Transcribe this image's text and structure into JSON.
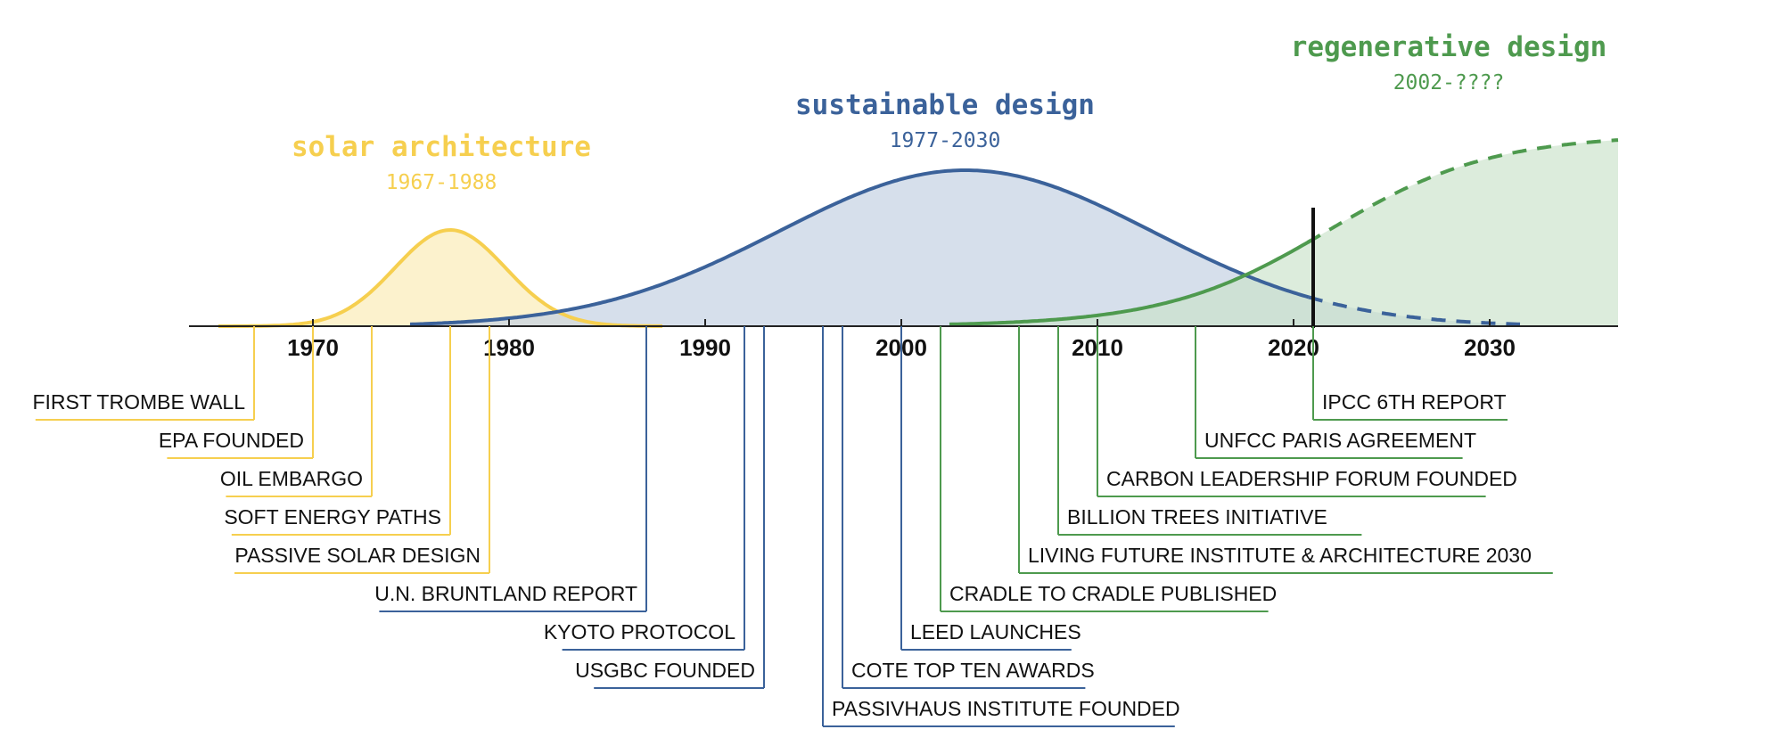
{
  "colors": {
    "solar": "#f6cf4f",
    "solar_fill": "#fbf0c4",
    "sustainable": "#3b629a",
    "sustainable_fill": "#c5d2e3",
    "regenerative": "#4e9a4e",
    "regenerative_fill": "#c9e2c9",
    "axis": "#222222",
    "text": "#111111"
  },
  "axis": {
    "ticks": [
      "1970",
      "1980",
      "1990",
      "2000",
      "2010",
      "2020",
      "2030"
    ]
  },
  "eras": [
    {
      "id": "solar",
      "title": "solar architecture",
      "years": "1967-1988"
    },
    {
      "id": "sustainable",
      "title": "sustainable design",
      "years": "1977-2030"
    },
    {
      "id": "regenerative",
      "title": "regenerative design",
      "years": "2002-????"
    }
  ],
  "events": [
    {
      "label": "FIRST TROMBE WALL",
      "year": 1967,
      "era": "solar"
    },
    {
      "label": "EPA FOUNDED",
      "year": 1970,
      "era": "solar"
    },
    {
      "label": "OIL EMBARGO",
      "year": 1973,
      "era": "solar"
    },
    {
      "label": "SOFT ENERGY PATHS",
      "year": 1977,
      "era": "solar"
    },
    {
      "label": "PASSIVE SOLAR DESIGN",
      "year": 1979,
      "era": "solar"
    },
    {
      "label": "U.N. BRUNTLAND REPORT",
      "year": 1987,
      "era": "sustainable"
    },
    {
      "label": "KYOTO PROTOCOL",
      "year": 1992,
      "era": "sustainable"
    },
    {
      "label": "USGBC FOUNDED",
      "year": 1993,
      "era": "sustainable"
    },
    {
      "label": "PASSIVHAUS INSTITUTE FOUNDED",
      "year": 1996,
      "era": "sustainable"
    },
    {
      "label": "COTE TOP TEN AWARDS",
      "year": 1997,
      "era": "sustainable"
    },
    {
      "label": "LEED LAUNCHES",
      "year": 2000,
      "era": "sustainable"
    },
    {
      "label": "CRADLE TO CRADLE PUBLISHED",
      "year": 2002,
      "era": "regenerative"
    },
    {
      "label": "LIVING FUTURE INSTITUTE & ARCHITECTURE 2030",
      "year": 2006,
      "era": "regenerative"
    },
    {
      "label": "BILLION TREES INITIATIVE",
      "year": 2008,
      "era": "regenerative"
    },
    {
      "label": "CARBON LEADERSHIP FORUM FOUNDED",
      "year": 2010,
      "era": "regenerative"
    },
    {
      "label": "UNFCC PARIS AGREEMENT",
      "year": 2015,
      "era": "regenerative"
    },
    {
      "label": "IPCC 6TH REPORT",
      "year": 2021,
      "era": "regenerative"
    }
  ],
  "present_marker_year": 2021
}
